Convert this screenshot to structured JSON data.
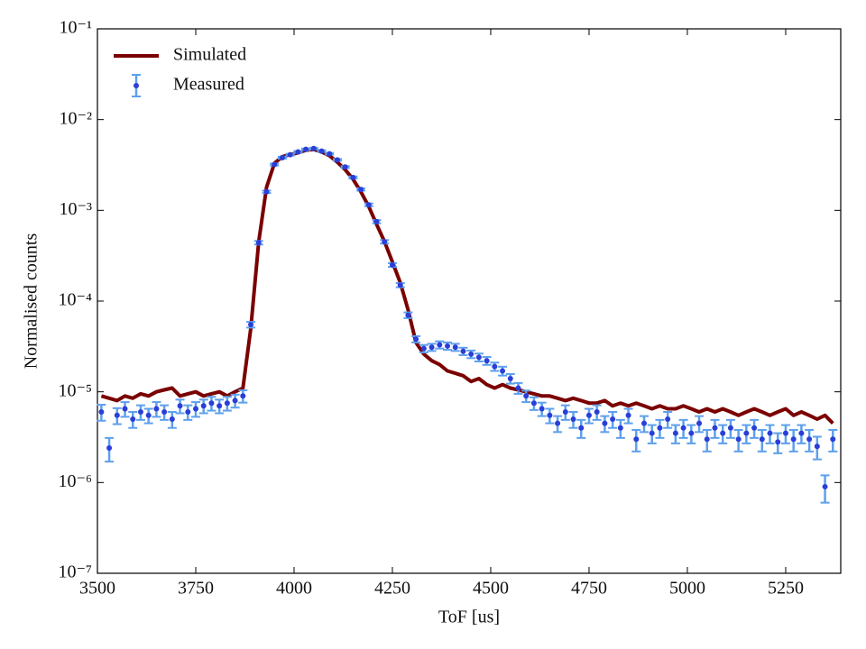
{
  "chart_data": {
    "type": "line_errorbar",
    "xlabel": "ToF [us]",
    "ylabel": "Normalised counts",
    "xlim": [
      3500,
      5390
    ],
    "xticks": [
      3500,
      3750,
      4000,
      4250,
      4500,
      4750,
      5000,
      5250
    ],
    "ylim": [
      1e-07,
      0.1
    ],
    "yscale": "log",
    "yticks": [
      {
        "value": 1e-07,
        "label": "10⁻⁷"
      },
      {
        "value": 1e-06,
        "label": "10⁻⁶"
      },
      {
        "value": 1e-05,
        "label": "10⁻⁵"
      },
      {
        "value": 0.0001,
        "label": "10⁻⁴"
      },
      {
        "value": 0.001,
        "label": "10⁻³"
      },
      {
        "value": 0.01,
        "label": "10⁻²"
      },
      {
        "value": 0.1,
        "label": "10⁻¹"
      }
    ],
    "legend": "upper left",
    "x": [
      3510,
      3530,
      3550,
      3570,
      3590,
      3610,
      3630,
      3650,
      3670,
      3690,
      3710,
      3730,
      3750,
      3770,
      3790,
      3810,
      3830,
      3850,
      3870,
      3890,
      3910,
      3930,
      3950,
      3970,
      3990,
      4010,
      4030,
      4050,
      4070,
      4090,
      4110,
      4130,
      4150,
      4170,
      4190,
      4210,
      4230,
      4250,
      4270,
      4290,
      4310,
      4330,
      4350,
      4370,
      4390,
      4410,
      4430,
      4450,
      4470,
      4490,
      4510,
      4530,
      4550,
      4570,
      4590,
      4610,
      4630,
      4650,
      4670,
      4690,
      4710,
      4730,
      4750,
      4770,
      4790,
      4810,
      4830,
      4850,
      4870,
      4890,
      4910,
      4930,
      4950,
      4970,
      4990,
      5010,
      5030,
      5050,
      5070,
      5090,
      5110,
      5130,
      5150,
      5170,
      5190,
      5210,
      5230,
      5250,
      5270,
      5290,
      5310,
      5330,
      5350,
      5370
    ],
    "series": [
      {
        "name": "Simulated",
        "kind": "line",
        "color": "#7b0000",
        "values": [
          9e-06,
          8.5e-06,
          8e-06,
          9e-06,
          8.5e-06,
          9.5e-06,
          9e-06,
          1e-05,
          1.05e-05,
          1.1e-05,
          9e-06,
          9.5e-06,
          1e-05,
          9e-06,
          9.5e-06,
          1e-05,
          9e-06,
          1e-05,
          1.1e-05,
          5e-05,
          0.00045,
          0.0018,
          0.0033,
          0.0039,
          0.0041,
          0.0043,
          0.0046,
          0.0047,
          0.0044,
          0.004,
          0.0034,
          0.0028,
          0.0022,
          0.0016,
          0.0011,
          0.0007,
          0.00045,
          0.00027,
          0.00016,
          8e-05,
          3.5e-05,
          2.6e-05,
          2.2e-05,
          2e-05,
          1.7e-05,
          1.6e-05,
          1.5e-05,
          1.3e-05,
          1.4e-05,
          1.2e-05,
          1.1e-05,
          1.2e-05,
          1.1e-05,
          1.05e-05,
          1e-05,
          9.5e-06,
          9e-06,
          9e-06,
          8.5e-06,
          8e-06,
          8.5e-06,
          8e-06,
          7.5e-06,
          7.5e-06,
          8e-06,
          7e-06,
          7.5e-06,
          7e-06,
          7.5e-06,
          7e-06,
          6.5e-06,
          7e-06,
          6.5e-06,
          6.5e-06,
          7e-06,
          6.5e-06,
          6e-06,
          6.5e-06,
          6e-06,
          6.5e-06,
          6e-06,
          5.5e-06,
          6e-06,
          6.5e-06,
          6e-06,
          5.5e-06,
          6e-06,
          6.5e-06,
          5.5e-06,
          6e-06,
          5.5e-06,
          5e-06,
          5.5e-06,
          4.5e-06
        ]
      },
      {
        "name": "Measured",
        "kind": "errorbar",
        "color": "#2a3ed8",
        "error_color": "#5ea0ec",
        "values": [
          6e-06,
          2.4e-06,
          5.5e-06,
          6.5e-06,
          5e-06,
          6e-06,
          5.5e-06,
          6.5e-06,
          6e-06,
          5e-06,
          7e-06,
          6e-06,
          6.5e-06,
          7e-06,
          7.5e-06,
          7e-06,
          7.5e-06,
          8e-06,
          9e-06,
          5.5e-05,
          0.00044,
          0.0016,
          0.0032,
          0.0038,
          0.0041,
          0.0044,
          0.0047,
          0.0048,
          0.0045,
          0.0042,
          0.0036,
          0.003,
          0.0023,
          0.0017,
          0.00115,
          0.00075,
          0.00045,
          0.00025,
          0.00015,
          7e-05,
          3.8e-05,
          3e-05,
          3.1e-05,
          3.3e-05,
          3.2e-05,
          3.1e-05,
          2.8e-05,
          2.6e-05,
          2.4e-05,
          2.2e-05,
          1.9e-05,
          1.7e-05,
          1.4e-05,
          1.1e-05,
          9e-06,
          7.5e-06,
          6.5e-06,
          5.5e-06,
          4.5e-06,
          6e-06,
          5e-06,
          4e-06,
          5.5e-06,
          6e-06,
          4.5e-06,
          5e-06,
          4e-06,
          5.5e-06,
          3e-06,
          4.5e-06,
          3.5e-06,
          4e-06,
          5e-06,
          3.5e-06,
          4e-06,
          3.5e-06,
          4.5e-06,
          3e-06,
          4e-06,
          3.5e-06,
          4e-06,
          3e-06,
          3.5e-06,
          4e-06,
          3e-06,
          3.5e-06,
          2.8e-06,
          3.5e-06,
          3e-06,
          3.5e-06,
          3e-06,
          2.5e-06,
          9e-07,
          3e-06
        ],
        "errors": [
          1.2e-06,
          7e-07,
          1.1e-06,
          1.2e-06,
          1e-06,
          1.1e-06,
          1e-06,
          1.2e-06,
          1.1e-06,
          1e-06,
          1.2e-06,
          1.1e-06,
          1.2e-06,
          1.2e-06,
          1.3e-06,
          1.2e-06,
          1.3e-06,
          1.3e-06,
          1.4e-06,
          4e-06,
          2e-05,
          5e-05,
          8e-05,
          9e-05,
          9e-05,
          0.0001,
          0.0001,
          0.0001,
          0.0001,
          9e-05,
          8e-05,
          7e-05,
          6e-05,
          5e-05,
          4e-05,
          3e-05,
          2e-05,
          1.2e-05,
          8e-06,
          5e-06,
          3e-06,
          2.8e-06,
          2.8e-06,
          3e-06,
          3e-06,
          2.8e-06,
          2.6e-06,
          2.5e-06,
          2.4e-06,
          2.2e-06,
          2e-06,
          1.9e-06,
          1.7e-06,
          1.5e-06,
          1.3e-06,
          1.2e-06,
          1.1e-06,
          1e-06,
          9e-07,
          1.1e-06,
          1e-06,
          9e-07,
          1e-06,
          1.1e-06,
          9e-07,
          1e-06,
          9e-07,
          1e-06,
          8e-07,
          9e-07,
          8e-07,
          9e-07,
          1e-06,
          8e-07,
          9e-07,
          8e-07,
          9e-07,
          8e-07,
          9e-07,
          8e-07,
          9e-07,
          8e-07,
          8e-07,
          9e-07,
          8e-07,
          8e-07,
          7e-07,
          8e-07,
          8e-07,
          8e-07,
          8e-07,
          7e-07,
          3e-07,
          8e-07
        ]
      }
    ]
  }
}
